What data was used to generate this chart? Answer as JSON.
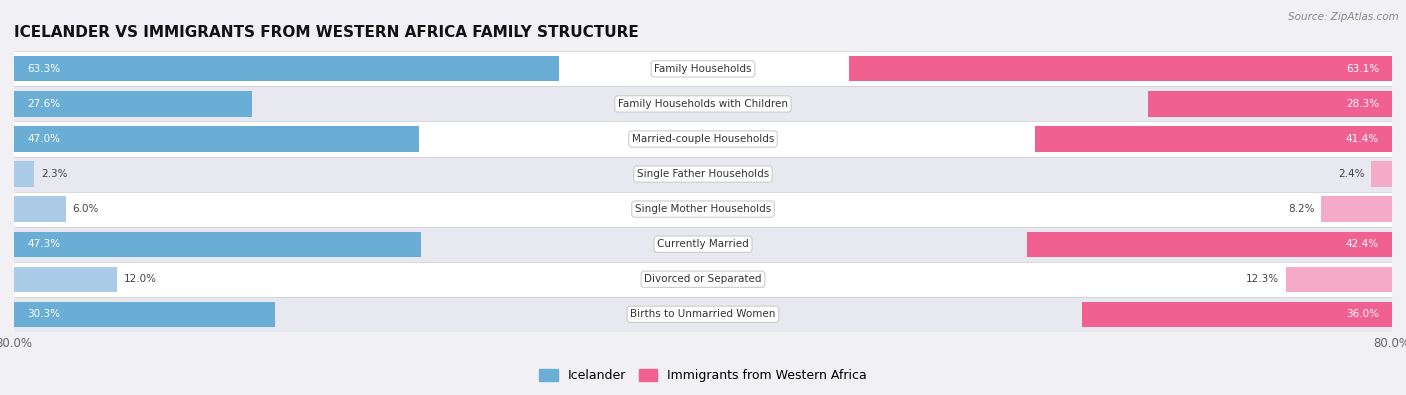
{
  "title": "ICELANDER VS IMMIGRANTS FROM WESTERN AFRICA FAMILY STRUCTURE",
  "source": "Source: ZipAtlas.com",
  "categories": [
    "Family Households",
    "Family Households with Children",
    "Married-couple Households",
    "Single Father Households",
    "Single Mother Households",
    "Currently Married",
    "Divorced or Separated",
    "Births to Unmarried Women"
  ],
  "icelander_values": [
    63.3,
    27.6,
    47.0,
    2.3,
    6.0,
    47.3,
    12.0,
    30.3
  ],
  "immigrant_values": [
    63.1,
    28.3,
    41.4,
    2.4,
    8.2,
    42.4,
    12.3,
    36.0
  ],
  "icelander_color_dark": "#6aaed6",
  "icelander_color_light": "#aacce8",
  "immigrant_color_dark": "#f06090",
  "immigrant_color_light": "#f5aac8",
  "max_val": 80,
  "background_color": "#f0f0f5",
  "row_color_odd": "#ffffff",
  "row_color_even": "#e8e8f0",
  "legend_label_icelander": "Icelander",
  "legend_label_immigrant": "Immigrants from Western Africa",
  "large_threshold": 20
}
